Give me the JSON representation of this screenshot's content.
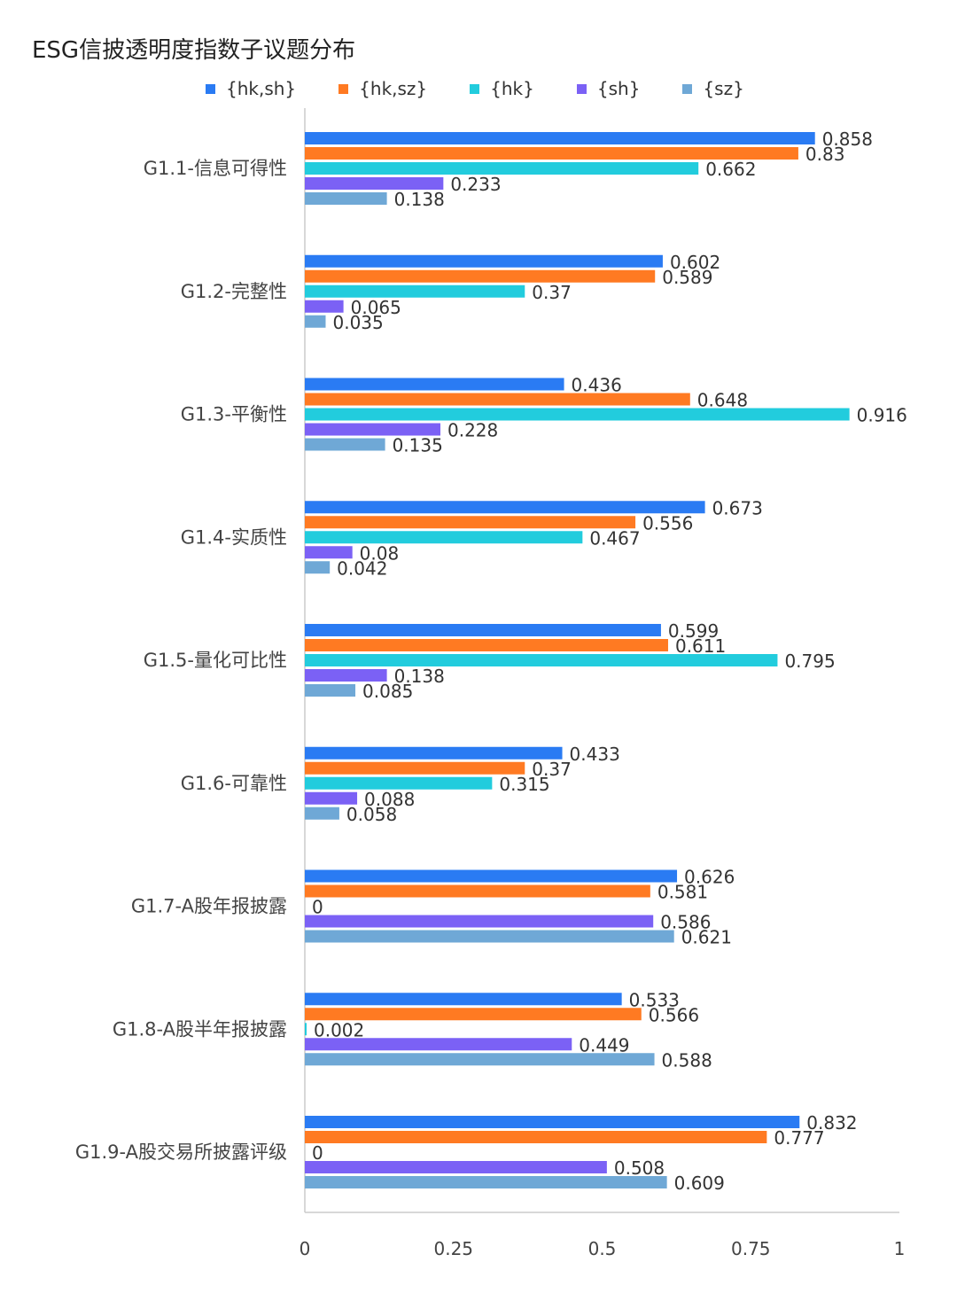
{
  "chart_data": {
    "type": "bar",
    "orientation": "horizontal",
    "title": "ESG信披透明度指数子议题分布",
    "legend_position": "top",
    "categories": [
      "G1.1-信息可得性",
      "G1.2-完整性",
      "G1.3-平衡性",
      "G1.4-实质性",
      "G1.5-量化可比性",
      "G1.6-可靠性",
      "G1.7-A股年报披露",
      "G1.8-A股半年报披露",
      "G1.9-A股交易所披露评级"
    ],
    "series": [
      {
        "name": "{hk,sh}",
        "color": "#2A7BF3",
        "values": [
          0.858,
          0.602,
          0.436,
          0.673,
          0.599,
          0.433,
          0.626,
          0.533,
          0.832
        ]
      },
      {
        "name": "{hk,sz}",
        "color": "#FF7A22",
        "values": [
          0.83,
          0.589,
          0.648,
          0.556,
          0.611,
          0.37,
          0.581,
          0.566,
          0.777
        ]
      },
      {
        "name": "{hk}",
        "color": "#22CCDD",
        "values": [
          0.662,
          0.37,
          0.916,
          0.467,
          0.795,
          0.315,
          0,
          0.002,
          0
        ]
      },
      {
        "name": "{sh}",
        "color": "#7B61F5",
        "values": [
          0.233,
          0.065,
          0.228,
          0.08,
          0.138,
          0.088,
          0.586,
          0.449,
          0.508
        ]
      },
      {
        "name": "{sz}",
        "color": "#6FA8D6",
        "values": [
          0.138,
          0.035,
          0.135,
          0.042,
          0.085,
          0.058,
          0.621,
          0.588,
          0.609
        ]
      }
    ],
    "xlim": [
      0,
      1
    ],
    "xticks": [
      "0",
      "0.25",
      "0.5",
      "0.75",
      "1"
    ],
    "grid": false
  }
}
